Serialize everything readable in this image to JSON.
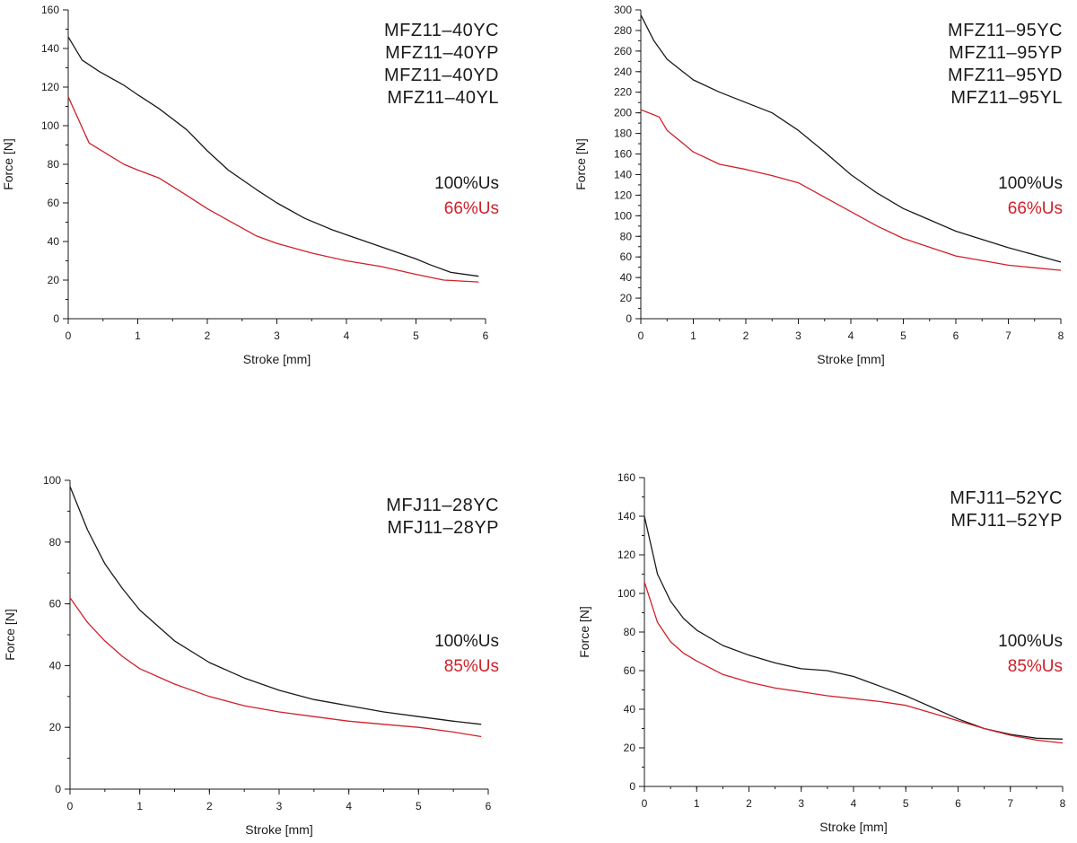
{
  "colors": {
    "full_voltage": "#1a1a1a",
    "reduced_voltage": "#d0202a",
    "axis": "#1a1a1a"
  },
  "chart_data": [
    {
      "type": "line",
      "xlabel": "Stroke [mm]",
      "ylabel": "Force [N]",
      "xlim": [
        0,
        6
      ],
      "ylim": [
        0,
        160
      ],
      "xticks": [
        0,
        1,
        2,
        3,
        4,
        5,
        6
      ],
      "yticks": [
        0,
        20,
        40,
        60,
        80,
        100,
        120,
        140,
        160
      ],
      "xminor": 0.5,
      "yminor": 10,
      "models": [
        "MFZ11–40YC",
        "MFZ11–40YP",
        "MFZ11–40YD",
        "MFZ11–40YL"
      ],
      "grid": false,
      "series": [
        {
          "name": "100%Us",
          "color": "#1a1a1a",
          "x": [
            0,
            0.2,
            0.45,
            0.8,
            1.0,
            1.3,
            1.7,
            2.0,
            2.3,
            2.7,
            3.0,
            3.4,
            3.8,
            4.2,
            4.6,
            5.0,
            5.2,
            5.5,
            5.9
          ],
          "y": [
            146,
            134,
            128,
            121,
            116,
            109,
            98,
            87,
            77,
            67,
            60,
            52,
            46,
            41,
            36,
            31,
            28,
            24,
            22
          ]
        },
        {
          "name": "66%Us",
          "color": "#d0202a",
          "x": [
            0,
            0.3,
            0.8,
            1.0,
            1.3,
            1.7,
            2.0,
            2.3,
            2.7,
            3.0,
            3.5,
            4.0,
            4.5,
            5.0,
            5.4,
            5.9
          ],
          "y": [
            115,
            91,
            80,
            77,
            73,
            64,
            57,
            51,
            43,
            39,
            34,
            30,
            27,
            23,
            20,
            19
          ]
        }
      ]
    },
    {
      "type": "line",
      "xlabel": "Stroke [mm]",
      "ylabel": "Force [N]",
      "xlim": [
        0,
        8
      ],
      "ylim": [
        0,
        300
      ],
      "xticks": [
        0,
        1,
        2,
        3,
        4,
        5,
        6,
        7,
        8
      ],
      "yticks": [
        0,
        20,
        40,
        60,
        80,
        100,
        120,
        140,
        160,
        180,
        200,
        220,
        240,
        260,
        280,
        300
      ],
      "xminor": 0.5,
      "yminor": 10,
      "models": [
        "MFZ11–95YC",
        "MFZ11–95YP",
        "MFZ11–95YD",
        "MFZ11–95YL"
      ],
      "grid": false,
      "series": [
        {
          "name": "100%Us",
          "color": "#1a1a1a",
          "x": [
            0,
            0.25,
            0.5,
            1.0,
            1.5,
            2.0,
            2.5,
            3.0,
            3.5,
            4.0,
            4.5,
            5.0,
            6.0,
            7.0,
            8.0
          ],
          "y": [
            295,
            270,
            252,
            232,
            220,
            210,
            200,
            183,
            162,
            140,
            122,
            107,
            85,
            69,
            55
          ]
        },
        {
          "name": "66%Us",
          "color": "#d0202a",
          "x": [
            0,
            0.35,
            0.5,
            1.0,
            1.5,
            2.0,
            2.5,
            3.0,
            3.5,
            4.0,
            4.5,
            5.0,
            6.0,
            7.0,
            8.0
          ],
          "y": [
            203,
            196,
            183,
            162,
            150,
            145,
            139,
            132,
            118,
            104,
            90,
            78,
            61,
            52,
            47
          ]
        }
      ]
    },
    {
      "type": "line",
      "xlabel": "Stroke [mm]",
      "ylabel": "Force [N]",
      "xlim": [
        0,
        6
      ],
      "ylim": [
        0,
        100
      ],
      "xticks": [
        0,
        1,
        2,
        3,
        4,
        5,
        6
      ],
      "yticks": [
        0,
        20,
        40,
        60,
        80,
        100
      ],
      "xminor": 0.5,
      "yminor": 10,
      "models": [
        "MFJ11–28YC",
        "MFJ11–28YP"
      ],
      "grid": false,
      "series": [
        {
          "name": "100%Us",
          "color": "#1a1a1a",
          "x": [
            0,
            0.25,
            0.5,
            0.75,
            1.0,
            1.5,
            2.0,
            2.5,
            3.0,
            3.5,
            4.0,
            4.5,
            5.0,
            5.5,
            5.9
          ],
          "y": [
            98,
            84,
            73,
            65,
            58,
            48,
            41,
            36,
            32,
            29,
            27,
            25,
            23.5,
            22,
            21
          ]
        },
        {
          "name": "85%Us",
          "color": "#d0202a",
          "x": [
            0,
            0.25,
            0.5,
            0.75,
            1.0,
            1.5,
            2.0,
            2.5,
            3.0,
            3.5,
            4.0,
            4.5,
            5.0,
            5.5,
            5.9
          ],
          "y": [
            62,
            54,
            48,
            43,
            39,
            34,
            30,
            27,
            25,
            23.5,
            22,
            21,
            20,
            18.5,
            17
          ]
        }
      ]
    },
    {
      "type": "line",
      "xlabel": "Stroke [mm]",
      "ylabel": "Force [N]",
      "xlim": [
        0,
        8
      ],
      "ylim": [
        0,
        160
      ],
      "xticks": [
        0,
        1,
        2,
        3,
        4,
        5,
        6,
        7,
        8
      ],
      "yticks": [
        0,
        20,
        40,
        60,
        80,
        100,
        120,
        140,
        160
      ],
      "xminor": 0.5,
      "yminor": 10,
      "models": [
        "MFJ11–52YC",
        "MFJ11–52YP"
      ],
      "grid": false,
      "series": [
        {
          "name": "100%Us",
          "color": "#1a1a1a",
          "x": [
            0,
            0.25,
            0.5,
            0.75,
            1.0,
            1.5,
            2.0,
            2.5,
            3.0,
            3.5,
            4.0,
            4.5,
            5.0,
            5.5,
            6.0,
            6.5,
            7.0,
            7.5,
            8.0
          ],
          "y": [
            140,
            110,
            96,
            87,
            81,
            73,
            68,
            64,
            61,
            60,
            57,
            52,
            47,
            41,
            35,
            30,
            27,
            25,
            24.5
          ]
        },
        {
          "name": "85%Us",
          "color": "#d0202a",
          "x": [
            0,
            0.25,
            0.5,
            0.75,
            1.0,
            1.5,
            2.0,
            2.5,
            3.0,
            3.5,
            4.0,
            4.5,
            5.0,
            5.5,
            6.0,
            6.5,
            7.0,
            7.5,
            8.0
          ],
          "y": [
            106,
            85,
            75,
            69,
            65,
            58,
            54,
            51,
            49,
            47,
            45.5,
            44,
            42,
            38,
            34,
            30,
            26.5,
            24,
            22.5
          ]
        }
      ]
    }
  ]
}
